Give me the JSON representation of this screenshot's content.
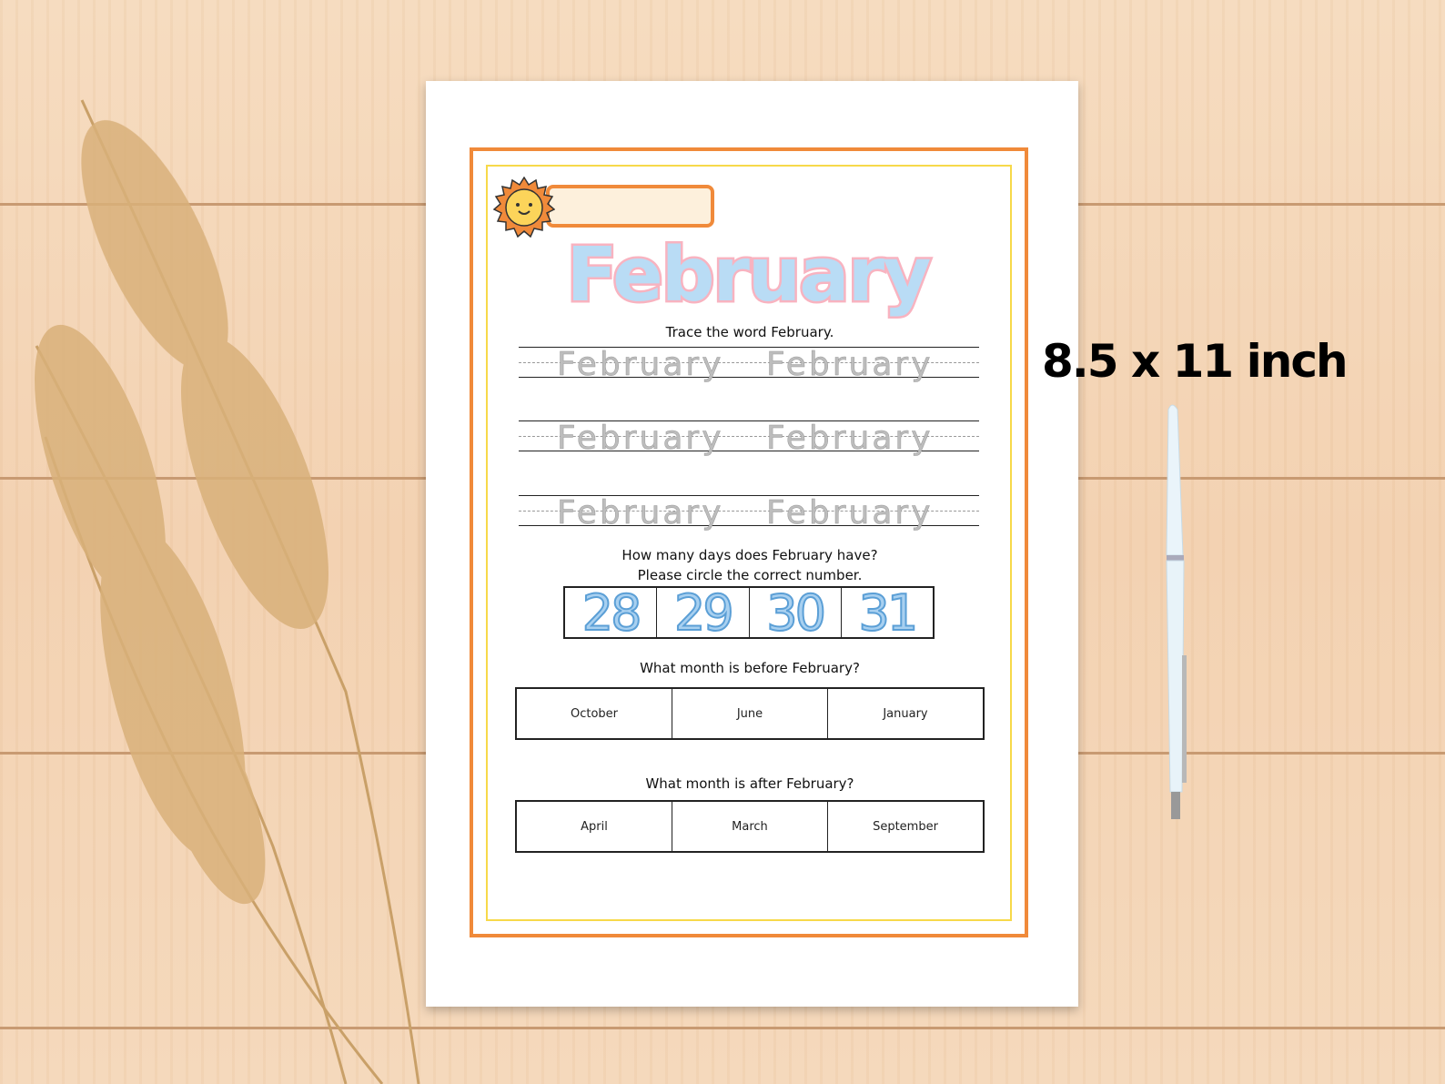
{
  "worksheet": {
    "title": "February",
    "trace_instruction": "Trace the word February.",
    "trace_word": "February",
    "trace_rows": [
      [
        "February",
        "February"
      ],
      [
        "February",
        "February"
      ],
      [
        "February",
        "February"
      ]
    ],
    "days_question": "How many days does February have?",
    "days_instruction": "Please circle the correct number.",
    "day_options": [
      "28",
      "29",
      "30",
      "31"
    ],
    "before_question": "What month is before February?",
    "before_options": [
      "October",
      "June",
      "January"
    ],
    "after_question": "What month is after February?",
    "after_options": [
      "April",
      "March",
      "September"
    ]
  },
  "size_label": "8.5 x 11 inch",
  "colors": {
    "border": "#f08a3a",
    "inner_border": "#f7d94a",
    "title_fill": "#b9dcf5",
    "title_outline": "#f8b3c0",
    "numbers": "#5b9fd6"
  }
}
